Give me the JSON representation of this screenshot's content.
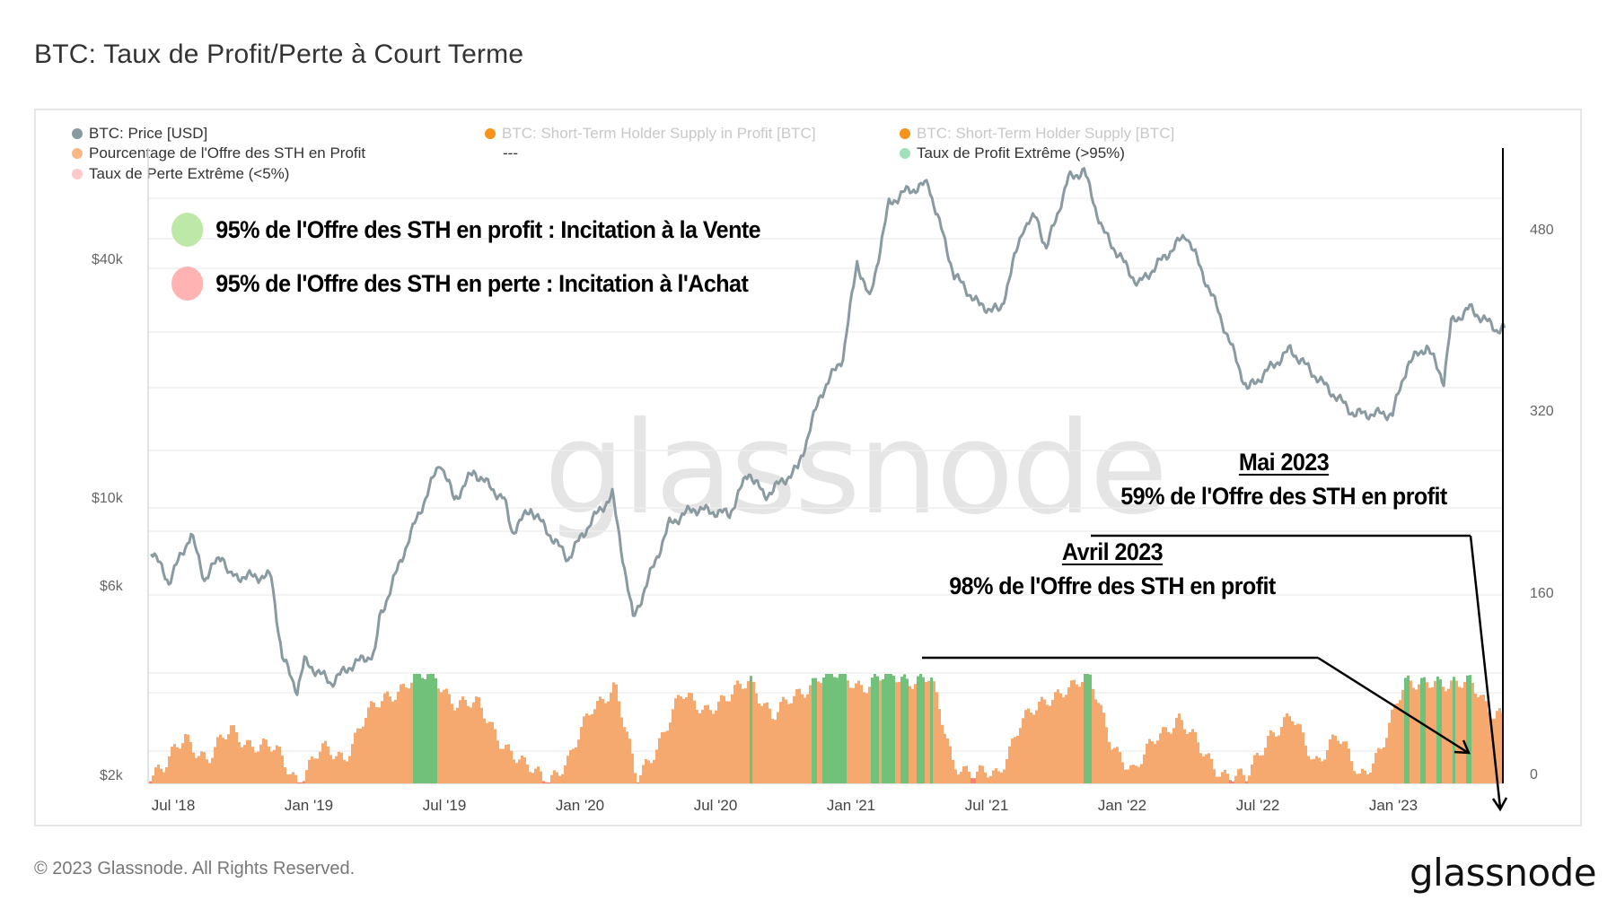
{
  "title": "BTC: Taux de Profit/Perte à Court Terme",
  "legend": [
    {
      "label": "BTC: Price [USD]",
      "color": "#8a9aa1",
      "muted": false
    },
    {
      "label": "BTC: Short-Term Holder Supply in Profit [BTC]",
      "color": "#f7931a",
      "muted": true
    },
    {
      "label": "BTC: Short-Term Holder Supply [BTC]",
      "color": "#f7931a",
      "muted": true
    },
    {
      "label": "Pourcentage de l'Offre des STH en Profit",
      "color": "#f9b987",
      "muted": false
    },
    {
      "label": "---",
      "color": "",
      "muted": false
    },
    {
      "label": "Taux de Profit Extrême (>95%)",
      "color": "#9fe0b8",
      "muted": false
    },
    {
      "label": "Taux de Perte Extrême (<5%)",
      "color": "#ffc9c9",
      "muted": false
    }
  ],
  "notes": {
    "profit": {
      "text": "95% de l'Offre des STH en profit : Incitation à la Vente",
      "color": "#bde8a8"
    },
    "loss": {
      "text": "95% de l'Offre des STH en perte : Incitation à l'Achat",
      "color": "#ffb3b3"
    }
  },
  "annotations": {
    "may": {
      "head": "Mai 2023",
      "text": "59% de l'Offre des STH en profit"
    },
    "april": {
      "head": "Avril 2023",
      "text": "98% de l'Offre des STH en profit"
    }
  },
  "watermark": "glassnode",
  "footer": "© 2023 Glassnode. All Rights Reserved.",
  "logo": "glassnode",
  "colors": {
    "price": "#8a9aa1",
    "bar": "#f6a96e",
    "bar_extreme_profit": "#72c17a",
    "bar_extreme_loss": "#f5836e",
    "grid": "#efefef"
  },
  "chart_data": {
    "type": "line+bar",
    "title": "BTC: Taux de Profit/Perte à Court Terme",
    "x_ticks": [
      "Jul '18",
      "Jan '19",
      "Jul '19",
      "Jan '20",
      "Jul '20",
      "Jan '21",
      "Jul '21",
      "Jan '22",
      "Jul '22",
      "Jan '23"
    ],
    "left_axis": {
      "label": "BTC: Price [USD]",
      "scale": "log",
      "ticks": [
        "$2k",
        "$6k",
        "$10k",
        "$40k"
      ]
    },
    "right_axis": {
      "ticks": [
        "0",
        "160",
        "320",
        "480"
      ]
    },
    "price_series": {
      "name": "BTC: Price [USD]",
      "points": [
        [
          "2018-06-01",
          7500
        ],
        [
          "2018-06-25",
          6200
        ],
        [
          "2018-07-25",
          8200
        ],
        [
          "2018-08-12",
          6300
        ],
        [
          "2018-09-05",
          7300
        ],
        [
          "2018-09-15",
          6400
        ],
        [
          "2018-11-10",
          6400
        ],
        [
          "2018-11-25",
          4000
        ],
        [
          "2018-12-15",
          3300
        ],
        [
          "2018-12-25",
          3900
        ],
        [
          "2019-01-30",
          3450
        ],
        [
          "2019-02-25",
          3800
        ],
        [
          "2019-03-30",
          4100
        ],
        [
          "2019-04-05",
          5000
        ],
        [
          "2019-05-15",
          8000
        ],
        [
          "2019-06-26",
          12500
        ],
        [
          "2019-07-15",
          10000
        ],
        [
          "2019-08-10",
          11800
        ],
        [
          "2019-09-20",
          10000
        ],
        [
          "2019-10-01",
          8300
        ],
        [
          "2019-10-26",
          9500
        ],
        [
          "2019-12-15",
          7100
        ],
        [
          "2020-01-15",
          8800
        ],
        [
          "2020-02-13",
          10300
        ],
        [
          "2020-03-12",
          5000
        ],
        [
          "2020-03-16",
          5200
        ],
        [
          "2020-04-30",
          8700
        ],
        [
          "2020-06-01",
          9500
        ],
        [
          "2020-07-20",
          9200
        ],
        [
          "2020-08-15",
          11800
        ],
        [
          "2020-09-05",
          10200
        ],
        [
          "2020-10-20",
          12000
        ],
        [
          "2020-11-20",
          18500
        ],
        [
          "2020-12-20",
          23000
        ],
        [
          "2021-01-08",
          40000
        ],
        [
          "2021-01-25",
          32000
        ],
        [
          "2021-02-20",
          56000
        ],
        [
          "2021-03-13",
          60000
        ],
        [
          "2021-04-14",
          63000
        ],
        [
          "2021-05-19",
          37000
        ],
        [
          "2021-06-22",
          31000
        ],
        [
          "2021-07-20",
          30000
        ],
        [
          "2021-08-20",
          49000
        ],
        [
          "2021-09-07",
          52000
        ],
        [
          "2021-09-20",
          43000
        ],
        [
          "2021-10-20",
          65000
        ],
        [
          "2021-11-10",
          68000
        ],
        [
          "2021-12-05",
          48000
        ],
        [
          "2022-01-22",
          35000
        ],
        [
          "2022-03-28",
          47000
        ],
        [
          "2022-05-10",
          30000
        ],
        [
          "2022-06-18",
          19000
        ],
        [
          "2022-08-15",
          24000
        ],
        [
          "2022-09-30",
          19500
        ],
        [
          "2022-11-09",
          16500
        ],
        [
          "2022-12-31",
          16500
        ],
        [
          "2023-01-20",
          22000
        ],
        [
          "2023-02-15",
          24500
        ],
        [
          "2023-03-10",
          20000
        ],
        [
          "2023-03-20",
          28000
        ],
        [
          "2023-04-14",
          30500
        ],
        [
          "2023-05-20",
          27000
        ],
        [
          "2023-05-31",
          27200
        ]
      ]
    },
    "sth_profit_pct_series": {
      "name": "Pourcentage de l'Offre des STH en Profit",
      "unit": "%",
      "extreme_profit_threshold": 95,
      "extreme_loss_threshold": 5,
      "points": [
        [
          "2018-06",
          10
        ],
        [
          "2018-07",
          45
        ],
        [
          "2018-08",
          20
        ],
        [
          "2018-09",
          50
        ],
        [
          "2018-10",
          35
        ],
        [
          "2018-11",
          30
        ],
        [
          "2018-12",
          3
        ],
        [
          "2019-01",
          30
        ],
        [
          "2019-02",
          25
        ],
        [
          "2019-03",
          60
        ],
        [
          "2019-04",
          80
        ],
        [
          "2019-05",
          95
        ],
        [
          "2019-06",
          98
        ],
        [
          "2019-07",
          75
        ],
        [
          "2019-08",
          70
        ],
        [
          "2019-09",
          40
        ],
        [
          "2019-10",
          15
        ],
        [
          "2019-11",
          5
        ],
        [
          "2019-12",
          20
        ],
        [
          "2020-01",
          70
        ],
        [
          "2020-02",
          90
        ],
        [
          "2020-03",
          3
        ],
        [
          "2020-04",
          40
        ],
        [
          "2020-05",
          80
        ],
        [
          "2020-06",
          70
        ],
        [
          "2020-07",
          75
        ],
        [
          "2020-08",
          97
        ],
        [
          "2020-09",
          60
        ],
        [
          "2020-10",
          80
        ],
        [
          "2020-11",
          98
        ],
        [
          "2020-12",
          98
        ],
        [
          "2021-01",
          90
        ],
        [
          "2021-02",
          98
        ],
        [
          "2021-03",
          96
        ],
        [
          "2021-04",
          97
        ],
        [
          "2021-05",
          20
        ],
        [
          "2021-06",
          10
        ],
        [
          "2021-07",
          5
        ],
        [
          "2021-08",
          60
        ],
        [
          "2021-09",
          70
        ],
        [
          "2021-10",
          90
        ],
        [
          "2021-11",
          96
        ],
        [
          "2021-12",
          40
        ],
        [
          "2022-01",
          8
        ],
        [
          "2022-02",
          45
        ],
        [
          "2022-03",
          60
        ],
        [
          "2022-04",
          30
        ],
        [
          "2022-05",
          10
        ],
        [
          "2022-06",
          3
        ],
        [
          "2022-07",
          45
        ],
        [
          "2022-08",
          60
        ],
        [
          "2022-09",
          20
        ],
        [
          "2022-10",
          45
        ],
        [
          "2022-11",
          5
        ],
        [
          "2022-12",
          35
        ],
        [
          "2023-01",
          90
        ],
        [
          "2023-02",
          97
        ],
        [
          "2023-03",
          85
        ],
        [
          "2023-04",
          98
        ],
        [
          "2023-05",
          59
        ]
      ]
    },
    "annotations": [
      {
        "date": "2023-04",
        "text": "Avril 2023 — 98% de l'Offre des STH en profit"
      },
      {
        "date": "2023-05",
        "text": "Mai 2023 — 59% de l'Offre des STH en profit"
      }
    ]
  }
}
